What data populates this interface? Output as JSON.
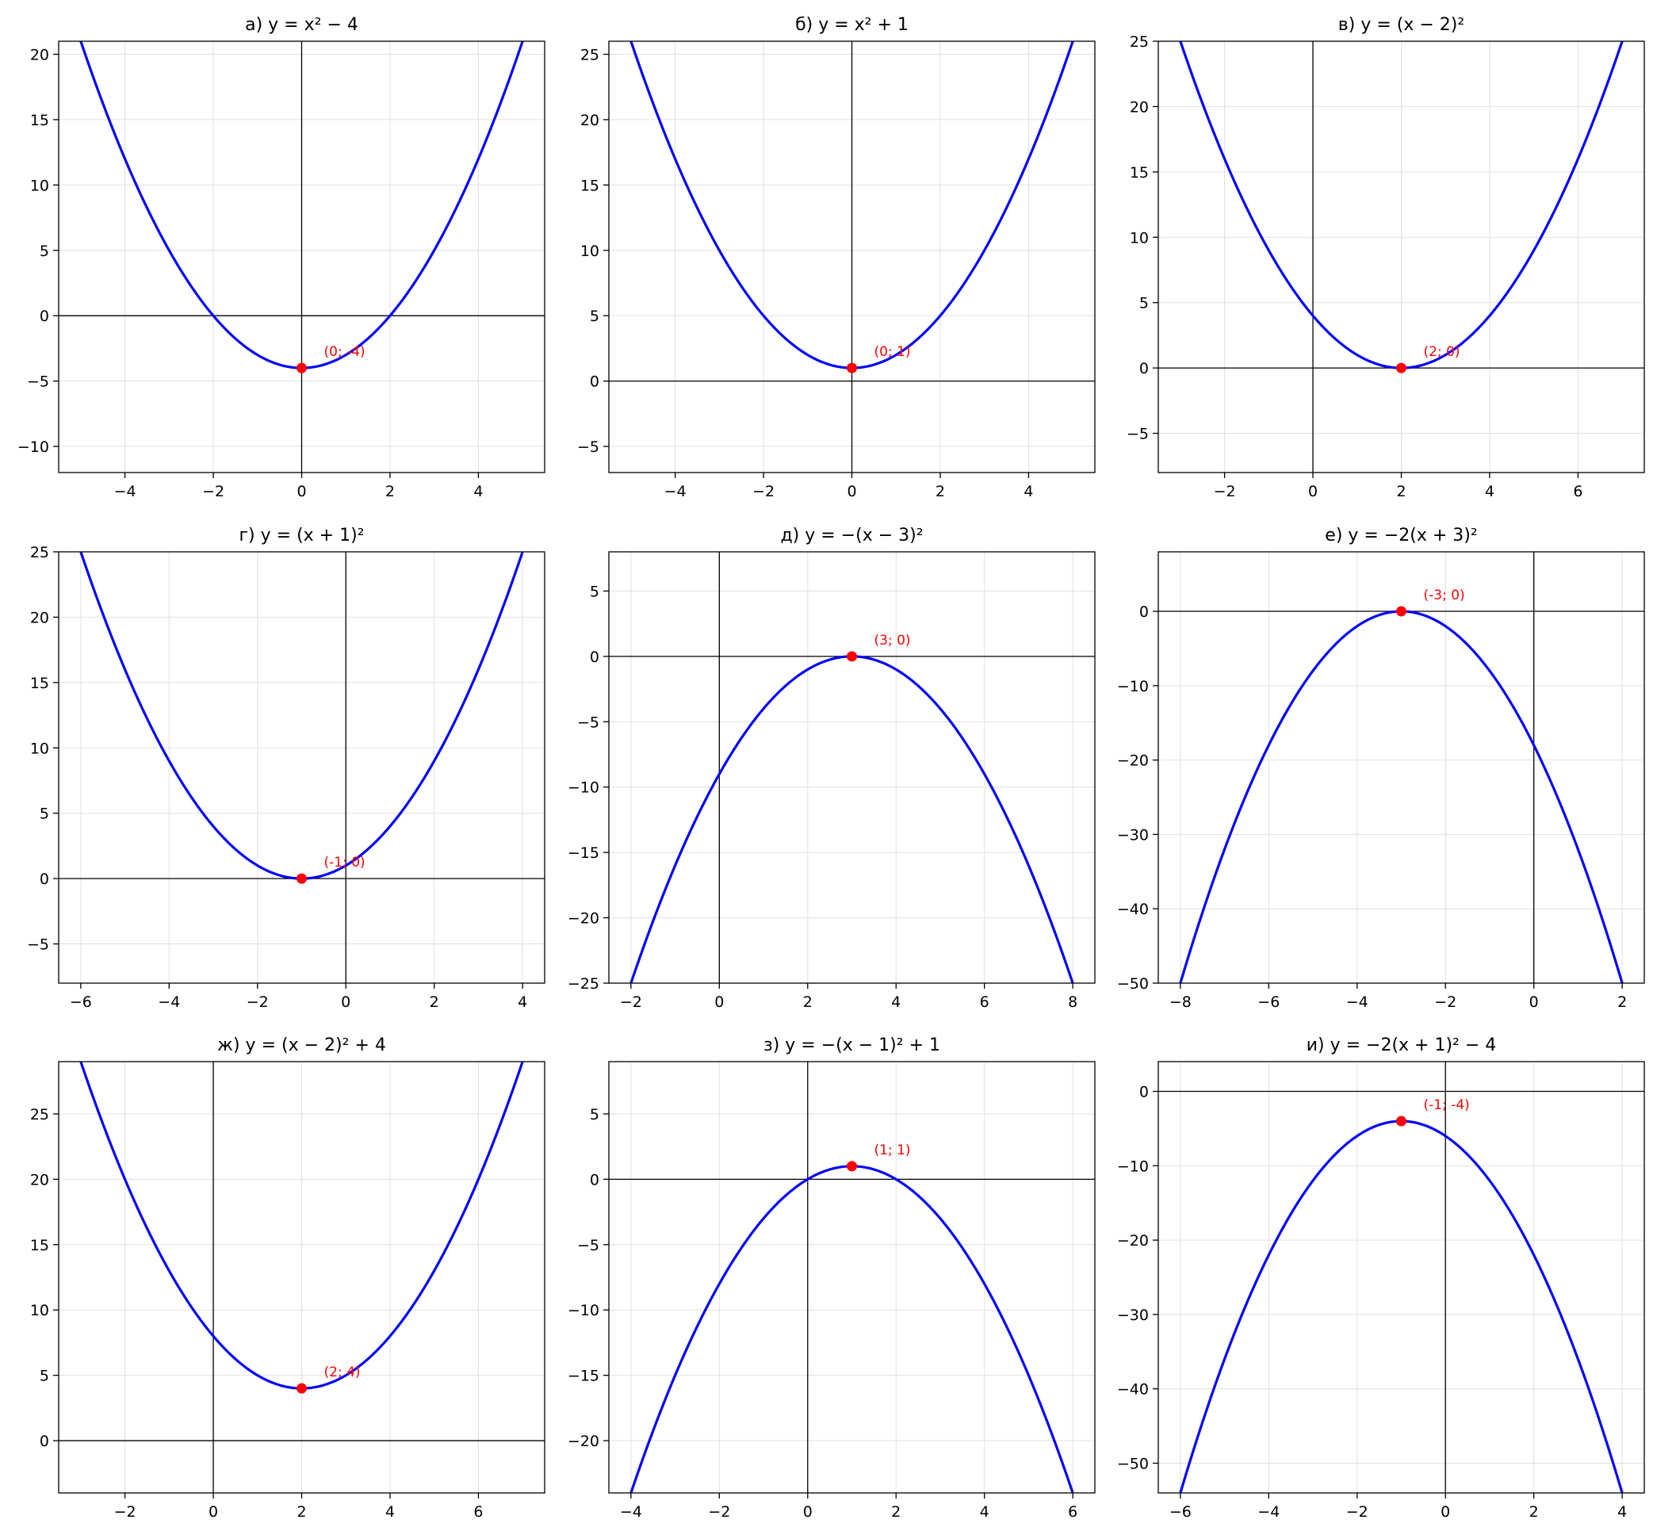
{
  "colors": {
    "curve": "#0000ff",
    "vertex": "#ff0000",
    "grid": "#e0e0e0",
    "axis": "#000000",
    "frame": "#000000",
    "background": "#ffffff"
  },
  "chart_data": [
    {
      "type": "line",
      "title": "а) y = x² − 4",
      "function": {
        "a": 1,
        "h": 0,
        "k": -4
      },
      "series": [
        {
          "x": [
            -5,
            -4,
            -3,
            -2,
            -1,
            0,
            1,
            2,
            3,
            4,
            5
          ],
          "y": [
            21,
            12,
            5,
            0,
            -3,
            -4,
            -3,
            0,
            5,
            12,
            21
          ]
        }
      ],
      "vertex": {
        "x": 0,
        "y": -4,
        "label": "(0; -4)"
      },
      "xlim": [
        -5.5,
        5.5
      ],
      "ylim": [
        -12,
        21
      ],
      "xticks": [
        -4,
        -2,
        0,
        2,
        4
      ],
      "yticks": [
        -10,
        -5,
        0,
        5,
        10,
        15,
        20
      ],
      "grid": true
    },
    {
      "type": "line",
      "title": "б) y = x² + 1",
      "function": {
        "a": 1,
        "h": 0,
        "k": 1
      },
      "series": [
        {
          "x": [
            -5,
            -4,
            -3,
            -2,
            -1,
            0,
            1,
            2,
            3,
            4,
            5
          ],
          "y": [
            26,
            17,
            10,
            5,
            2,
            1,
            2,
            5,
            10,
            17,
            26
          ]
        }
      ],
      "vertex": {
        "x": 0,
        "y": 1,
        "label": "(0; 1)"
      },
      "xlim": [
        -5.5,
        5.5
      ],
      "ylim": [
        -7,
        26
      ],
      "xticks": [
        -4,
        -2,
        0,
        2,
        4
      ],
      "yticks": [
        -5,
        0,
        5,
        10,
        15,
        20,
        25
      ],
      "grid": true
    },
    {
      "type": "line",
      "title": "в) y = (x − 2)²",
      "function": {
        "a": 1,
        "h": 2,
        "k": 0
      },
      "series": [
        {
          "x": [
            -3,
            -2,
            -1,
            0,
            1,
            2,
            3,
            4,
            5,
            6,
            7
          ],
          "y": [
            25,
            16,
            9,
            4,
            1,
            0,
            1,
            4,
            9,
            16,
            25
          ]
        }
      ],
      "vertex": {
        "x": 2,
        "y": 0,
        "label": "(2; 0)"
      },
      "xlim": [
        -3.5,
        7.5
      ],
      "ylim": [
        -8,
        25
      ],
      "xticks": [
        -2,
        0,
        2,
        4,
        6
      ],
      "yticks": [
        -5,
        0,
        5,
        10,
        15,
        20,
        25
      ],
      "grid": true
    },
    {
      "type": "line",
      "title": "г) y = (x + 1)²",
      "function": {
        "a": 1,
        "h": -1,
        "k": 0
      },
      "series": [
        {
          "x": [
            -6,
            -5,
            -4,
            -3,
            -2,
            -1,
            0,
            1,
            2,
            3,
            4
          ],
          "y": [
            25,
            16,
            9,
            4,
            1,
            0,
            1,
            4,
            9,
            16,
            25
          ]
        }
      ],
      "vertex": {
        "x": -1,
        "y": 0,
        "label": "(-1; 0)"
      },
      "xlim": [
        -6.5,
        4.5
      ],
      "ylim": [
        -8,
        25
      ],
      "xticks": [
        -6,
        -4,
        -2,
        0,
        2,
        4
      ],
      "yticks": [
        -5,
        0,
        5,
        10,
        15,
        20,
        25
      ],
      "grid": true
    },
    {
      "type": "line",
      "title": "д) y = −(x − 3)²",
      "function": {
        "a": -1,
        "h": 3,
        "k": 0
      },
      "series": [
        {
          "x": [
            -2,
            -1,
            0,
            1,
            2,
            3,
            4,
            5,
            6,
            7,
            8
          ],
          "y": [
            -25,
            -16,
            -9,
            -4,
            -1,
            0,
            -1,
            -4,
            -9,
            -16,
            -25
          ]
        }
      ],
      "vertex": {
        "x": 3,
        "y": 0,
        "label": "(3; 0)"
      },
      "xlim": [
        -2.5,
        8.5
      ],
      "ylim": [
        -25,
        8
      ],
      "xticks": [
        -2,
        0,
        2,
        4,
        6,
        8
      ],
      "yticks": [
        -25,
        -20,
        -15,
        -10,
        -5,
        0,
        5
      ],
      "grid": true
    },
    {
      "type": "line",
      "title": "е) y = −2(x + 3)²",
      "function": {
        "a": -2,
        "h": -3,
        "k": 0
      },
      "series": [
        {
          "x": [
            -8,
            -7,
            -6,
            -5,
            -4,
            -3,
            -2,
            -1,
            0,
            1,
            2
          ],
          "y": [
            -50,
            -32,
            -18,
            -8,
            -2,
            0,
            -2,
            -8,
            -18,
            -32,
            -50
          ]
        }
      ],
      "vertex": {
        "x": -3,
        "y": 0,
        "label": "(-3; 0)"
      },
      "xlim": [
        -8.5,
        2.5
      ],
      "ylim": [
        -50,
        8
      ],
      "xticks": [
        -8,
        -6,
        -4,
        -2,
        0,
        2
      ],
      "yticks": [
        -50,
        -40,
        -30,
        -20,
        -10,
        0
      ],
      "grid": true
    },
    {
      "type": "line",
      "title": "ж) y = (x − 2)² + 4",
      "function": {
        "a": 1,
        "h": 2,
        "k": 4
      },
      "series": [
        {
          "x": [
            -3,
            -2,
            -1,
            0,
            1,
            2,
            3,
            4,
            5,
            6,
            7
          ],
          "y": [
            29,
            20,
            13,
            8,
            5,
            4,
            5,
            8,
            13,
            20,
            29
          ]
        }
      ],
      "vertex": {
        "x": 2,
        "y": 4,
        "label": "(2; 4)"
      },
      "xlim": [
        -3.5,
        7.5
      ],
      "ylim": [
        -4,
        29
      ],
      "xticks": [
        -2,
        0,
        2,
        4,
        6
      ],
      "yticks": [
        0,
        5,
        10,
        15,
        20,
        25
      ],
      "grid": true
    },
    {
      "type": "line",
      "title": "з) y = −(x − 1)² + 1",
      "function": {
        "a": -1,
        "h": 1,
        "k": 1
      },
      "series": [
        {
          "x": [
            -4,
            -3,
            -2,
            -1,
            0,
            1,
            2,
            3,
            4,
            5,
            6
          ],
          "y": [
            -24,
            -15,
            -8,
            -3,
            0,
            1,
            0,
            -3,
            -8,
            -15,
            -24
          ]
        }
      ],
      "vertex": {
        "x": 1,
        "y": 1,
        "label": "(1; 1)"
      },
      "xlim": [
        -4.5,
        6.5
      ],
      "ylim": [
        -24,
        9
      ],
      "xticks": [
        -4,
        -2,
        0,
        2,
        4,
        6
      ],
      "yticks": [
        -20,
        -15,
        -10,
        -5,
        0,
        5
      ],
      "grid": true
    },
    {
      "type": "line",
      "title": "и) y = −2(x + 1)² − 4",
      "function": {
        "a": -2,
        "h": -1,
        "k": -4
      },
      "series": [
        {
          "x": [
            -6,
            -5,
            -4,
            -3,
            -2,
            -1,
            0,
            1,
            2,
            3,
            4
          ],
          "y": [
            -54,
            -36,
            -22,
            -12,
            -6,
            -4,
            -6,
            -12,
            -22,
            -36,
            -54
          ]
        }
      ],
      "vertex": {
        "x": -1,
        "y": -4,
        "label": "(-1; -4)"
      },
      "xlim": [
        -6.5,
        4.5
      ],
      "ylim": [
        -54,
        4
      ],
      "xticks": [
        -6,
        -4,
        -2,
        0,
        2,
        4
      ],
      "yticks": [
        -50,
        -40,
        -30,
        -20,
        -10,
        0
      ],
      "grid": true
    }
  ]
}
